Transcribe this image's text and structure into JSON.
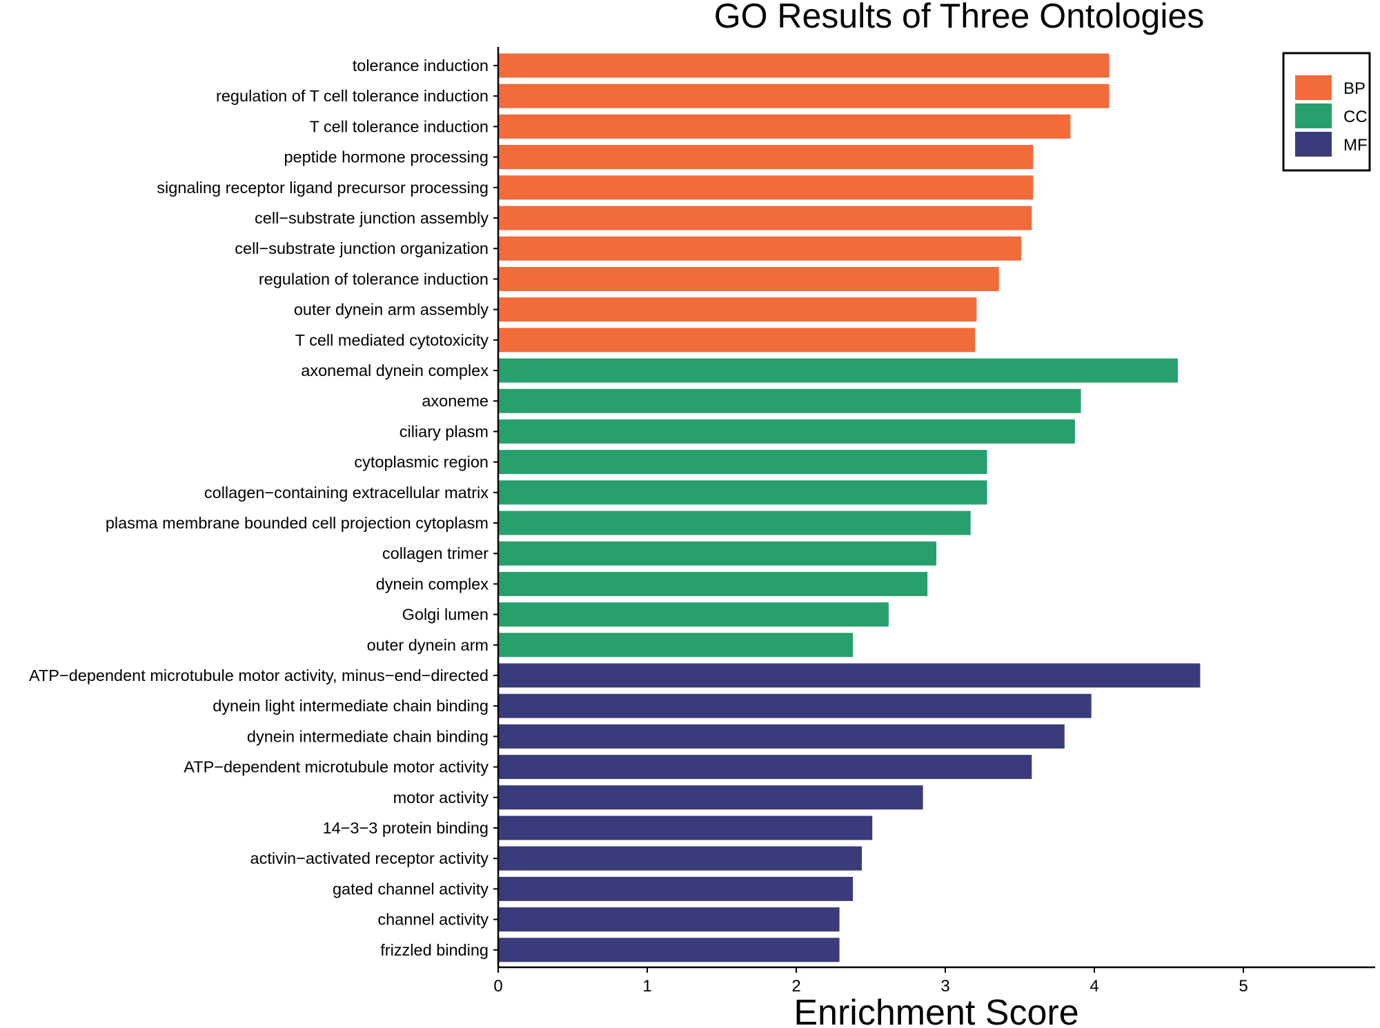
{
  "chart_data": {
    "type": "bar",
    "orientation": "horizontal",
    "title": "GO Results of Three Ontologies",
    "xlabel": "Enrichment Score",
    "ylabel": "",
    "xlim": [
      0,
      5.9
    ],
    "xticks": [
      0,
      1,
      2,
      3,
      4,
      5
    ],
    "grid": false,
    "legend_position": "top-right",
    "series": [
      {
        "name": "BP",
        "color": "#F26B3A",
        "categories": [
          "tolerance induction",
          "regulation of T cell tolerance induction",
          "T cell tolerance induction",
          "peptide hormone processing",
          "signaling receptor ligand precursor processing",
          "cell−substrate junction assembly",
          "cell−substrate junction organization",
          "regulation of tolerance induction",
          "outer dynein arm assembly",
          "T cell mediated cytotoxicity"
        ],
        "values": [
          4.1,
          4.1,
          3.84,
          3.59,
          3.59,
          3.58,
          3.51,
          3.36,
          3.21,
          3.2
        ]
      },
      {
        "name": "CC",
        "color": "#27A06E",
        "categories": [
          "axonemal dynein complex",
          "axoneme",
          "ciliary plasm",
          "cytoplasmic region",
          "collagen−containing extracellular matrix",
          "plasma membrane bounded cell projection cytoplasm",
          "collagen trimer",
          "dynein complex",
          "Golgi lumen",
          "outer dynein arm"
        ],
        "values": [
          4.56,
          3.91,
          3.87,
          3.28,
          3.28,
          3.17,
          2.94,
          2.88,
          2.62,
          2.38
        ]
      },
      {
        "name": "MF",
        "color": "#3A3B7A",
        "categories": [
          "ATP−dependent microtubule motor activity, minus−end−directed",
          "dynein light intermediate chain binding",
          "dynein intermediate chain binding",
          "ATP−dependent microtubule motor activity",
          "motor activity",
          "14−3−3 protein binding",
          "activin−activated receptor activity",
          "gated channel activity",
          "channel activity",
          "frizzled binding"
        ],
        "values": [
          4.71,
          3.98,
          3.8,
          3.58,
          2.85,
          2.51,
          2.44,
          2.38,
          2.29,
          2.29
        ]
      }
    ]
  }
}
